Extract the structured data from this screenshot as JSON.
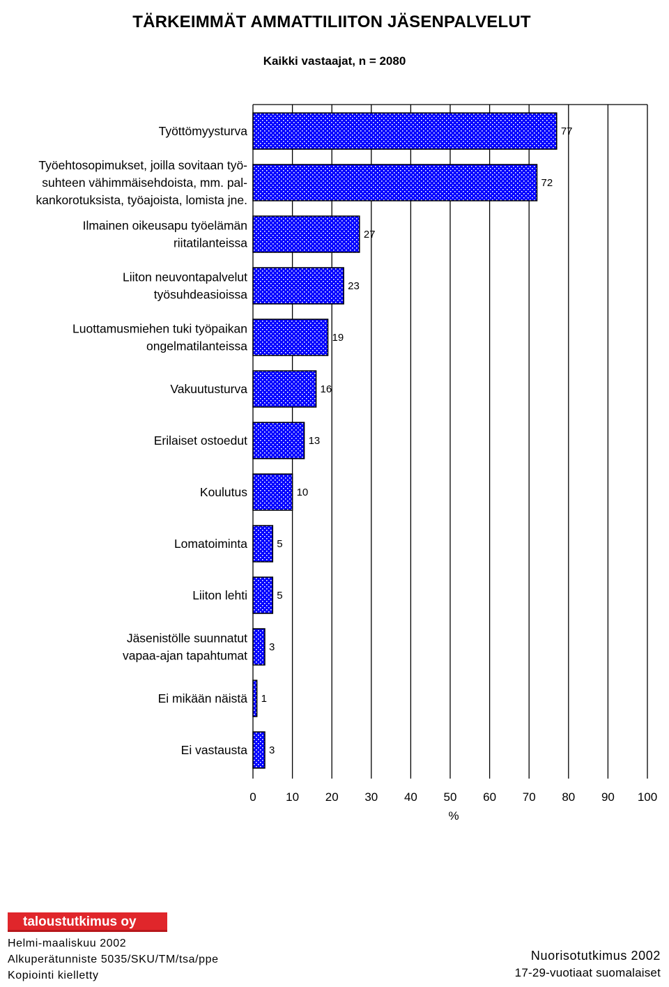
{
  "title": "TÄRKEIMMÄT AMMATTILIITON JÄSENPALVELUT",
  "subtitle": "Kaikki vastaajat, n = 2080",
  "chart_data": {
    "type": "bar",
    "orientation": "horizontal",
    "title": "TÄRKEIMMÄT AMMATTILIITON JÄSENPALVELUT",
    "subtitle": "Kaikki vastaajat, n = 2080",
    "xlabel": "%",
    "ylabel": "",
    "xlim": [
      0,
      100
    ],
    "xticks": [
      0,
      10,
      20,
      30,
      40,
      50,
      60,
      70,
      80,
      90,
      100
    ],
    "grid": "vertical",
    "bar_color": "#0000ff",
    "categories": [
      [
        "Työttömyysturva"
      ],
      [
        "Työehtosopimukset, joilla sovitaan työ-",
        "suhteen vähimmäisehdoista, mm. pal-",
        "kankorotuksista, työajoista, lomista jne."
      ],
      [
        "Ilmainen oikeusapu työelämän",
        "riitatilanteissa"
      ],
      [
        "Liiton neuvontapalvelut",
        "työsuhdeasioissa"
      ],
      [
        "Luottamusmiehen tuki työpaikan",
        "ongelmatilanteissa"
      ],
      [
        "Vakuutusturva"
      ],
      [
        "Erilaiset ostoedut"
      ],
      [
        "Koulutus"
      ],
      [
        "Lomatoiminta"
      ],
      [
        "Liiton lehti"
      ],
      [
        "Jäsenistölle suunnatut",
        "vapaa-ajan tapahtumat"
      ],
      [
        "Ei mikään näistä"
      ],
      [
        "Ei vastausta"
      ]
    ],
    "values": [
      77,
      72,
      27,
      23,
      19,
      16,
      13,
      10,
      5,
      5,
      3,
      1,
      3
    ]
  },
  "footer": {
    "logo": "taloustutkimus oy",
    "line1": "Helmi-maaliskuu 2002",
    "line2": "Alkuperätunniste 5035/SKU/TM/tsa/ppe",
    "line3": "Kopiointi kielletty",
    "right1": "Nuorisotutkimus 2002",
    "right2": "17-29-vuotiaat suomalaiset"
  }
}
